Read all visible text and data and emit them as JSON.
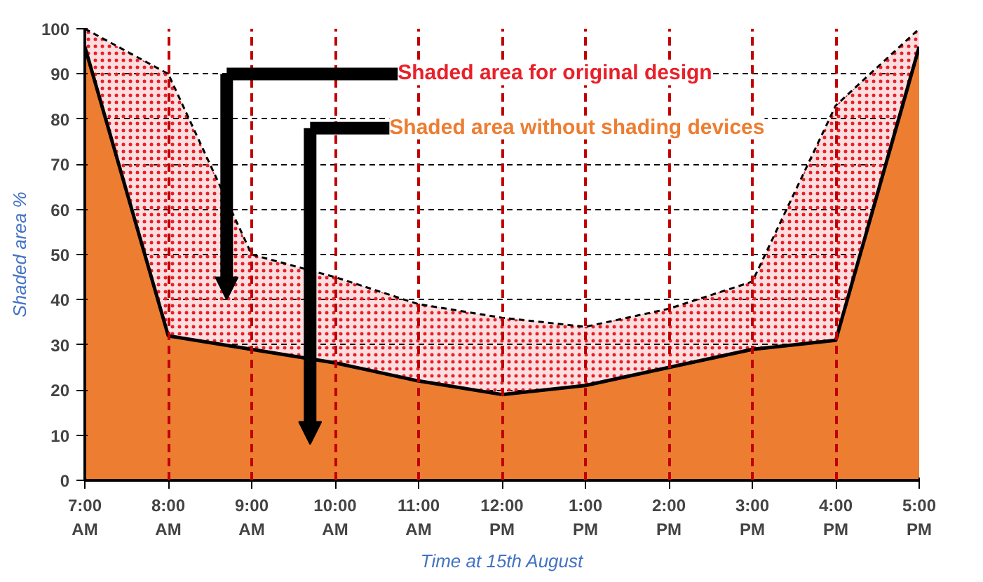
{
  "chart_data": {
    "type": "area",
    "xlabel": "Time at 15th August",
    "ylabel": "Shaded area %",
    "categories": [
      "7:00\nAM",
      "8:00\nAM",
      "9:00\nAM",
      "10:00\nAM",
      "11:00\nAM",
      "12:00\nPM",
      "1:00\nPM",
      "2:00\nPM",
      "3:00\nPM",
      "4:00\nPM",
      "5:00\nPM"
    ],
    "series": [
      {
        "name": "Shaded area for original design",
        "color": "#e8202a",
        "line_style": "dashed",
        "values": [
          100,
          90,
          50,
          45,
          39,
          36,
          34,
          38,
          44,
          83,
          100
        ]
      },
      {
        "name": "Shaded area without shading devices",
        "color": "#ed7d31",
        "line_style": "solid",
        "values": [
          96,
          32,
          29,
          26,
          22,
          19,
          21,
          25,
          29,
          31,
          96
        ]
      }
    ],
    "ylim": [
      0,
      100
    ],
    "yticks": [
      0,
      10,
      20,
      30,
      40,
      50,
      60,
      70,
      80,
      90,
      100
    ],
    "grid": true,
    "legend": "top"
  }
}
